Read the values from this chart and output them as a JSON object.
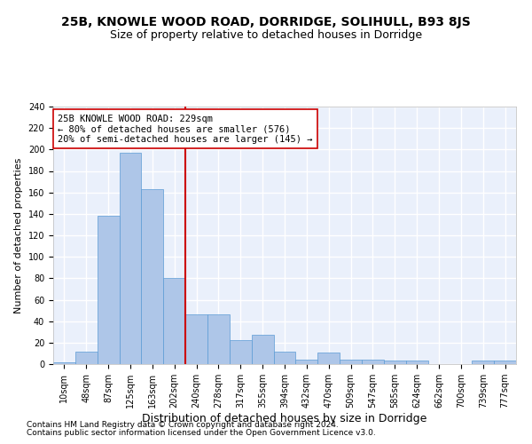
{
  "title": "25B, KNOWLE WOOD ROAD, DORRIDGE, SOLIHULL, B93 8JS",
  "subtitle": "Size of property relative to detached houses in Dorridge",
  "xlabel": "Distribution of detached houses by size in Dorridge",
  "ylabel": "Number of detached properties",
  "bin_labels": [
    "10sqm",
    "48sqm",
    "87sqm",
    "125sqm",
    "163sqm",
    "202sqm",
    "240sqm",
    "278sqm",
    "317sqm",
    "355sqm",
    "394sqm",
    "432sqm",
    "470sqm",
    "509sqm",
    "547sqm",
    "585sqm",
    "624sqm",
    "662sqm",
    "700sqm",
    "739sqm",
    "777sqm"
  ],
  "bar_heights": [
    2,
    12,
    138,
    197,
    163,
    80,
    46,
    46,
    22,
    27,
    12,
    4,
    11,
    4,
    4,
    3,
    3,
    0,
    0,
    3,
    3
  ],
  "bar_color": "#aec6e8",
  "bar_edge_color": "#5b9bd5",
  "property_line_x": 5.5,
  "annotation_text": "25B KNOWLE WOOD ROAD: 229sqm\n← 80% of detached houses are smaller (576)\n20% of semi-detached houses are larger (145) →",
  "annotation_box_color": "white",
  "annotation_box_edge": "#cc0000",
  "vline_color": "#cc0000",
  "footer1": "Contains HM Land Registry data © Crown copyright and database right 2024.",
  "footer2": "Contains public sector information licensed under the Open Government Licence v3.0.",
  "bg_color": "#eaf0fb",
  "grid_color": "#ffffff",
  "title_fontsize": 10,
  "subtitle_fontsize": 9,
  "ylabel_fontsize": 8,
  "xlabel_fontsize": 9,
  "tick_fontsize": 7,
  "annotation_fontsize": 7.5,
  "footer_fontsize": 6.5,
  "ylim": [
    0,
    240
  ],
  "yticks": [
    0,
    20,
    40,
    60,
    80,
    100,
    120,
    140,
    160,
    180,
    200,
    220,
    240
  ]
}
